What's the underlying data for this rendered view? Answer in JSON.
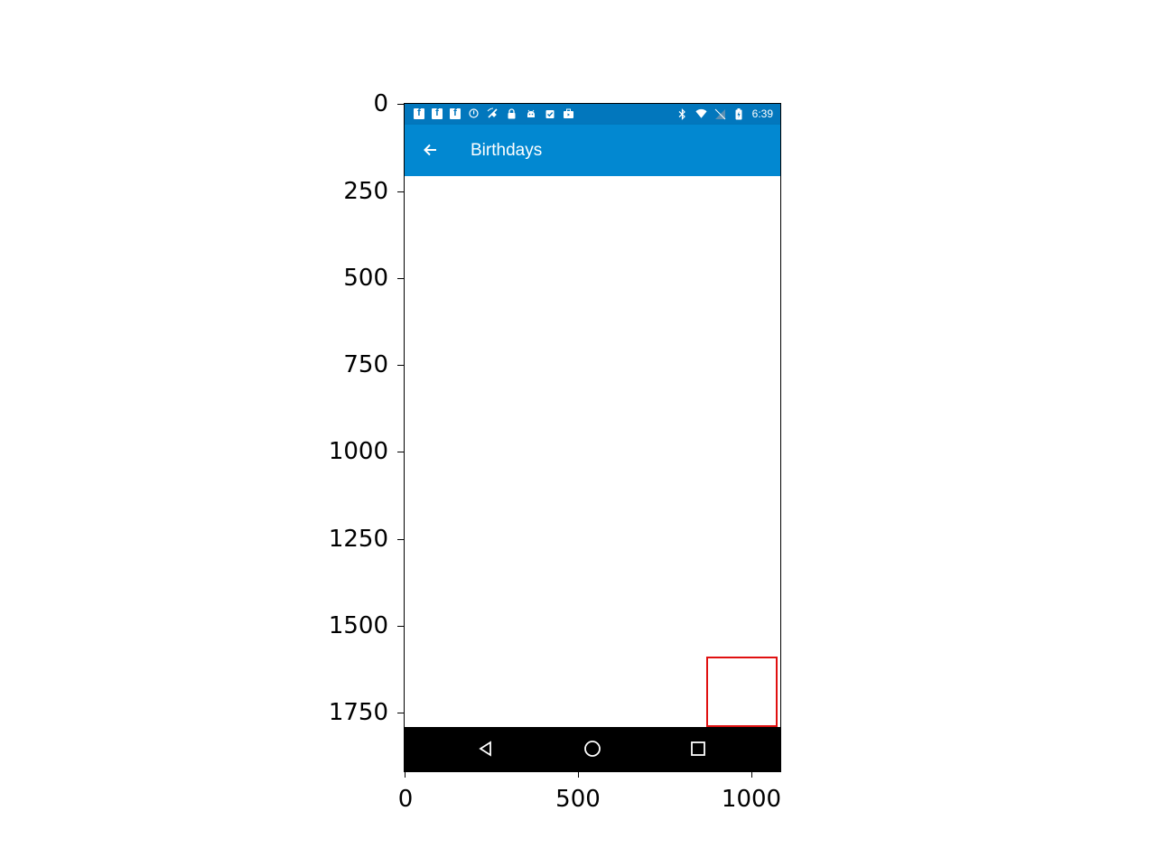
{
  "status_bar": {
    "time": "6:39",
    "left_icons": [
      "facebook-icon",
      "facebook-icon",
      "facebook-icon",
      "alert-circle-icon",
      "satellite-icon",
      "lock-icon",
      "android-icon",
      "clipboard-check-icon",
      "briefcase-icon"
    ],
    "right_icons": [
      "bluetooth-icon",
      "wifi-icon",
      "no-signal-icon",
      "battery-charging-icon"
    ]
  },
  "app_bar": {
    "title": "Birthdays",
    "back_icon": "arrow-back-icon",
    "background": "#0288d1"
  },
  "fab": {
    "icon": "cake-icon",
    "color": "#0288d1"
  },
  "nav_bar": {
    "buttons": [
      "back-triangle-icon",
      "home-circle-icon",
      "recents-square-icon"
    ]
  },
  "highlight": {
    "color": "#e01010",
    "target": "fab"
  },
  "axes": {
    "y_ticks": [
      "0",
      "250",
      "500",
      "750",
      "1000",
      "1250",
      "1500",
      "1750"
    ],
    "x_ticks": [
      "0",
      "500",
      "1000"
    ]
  }
}
